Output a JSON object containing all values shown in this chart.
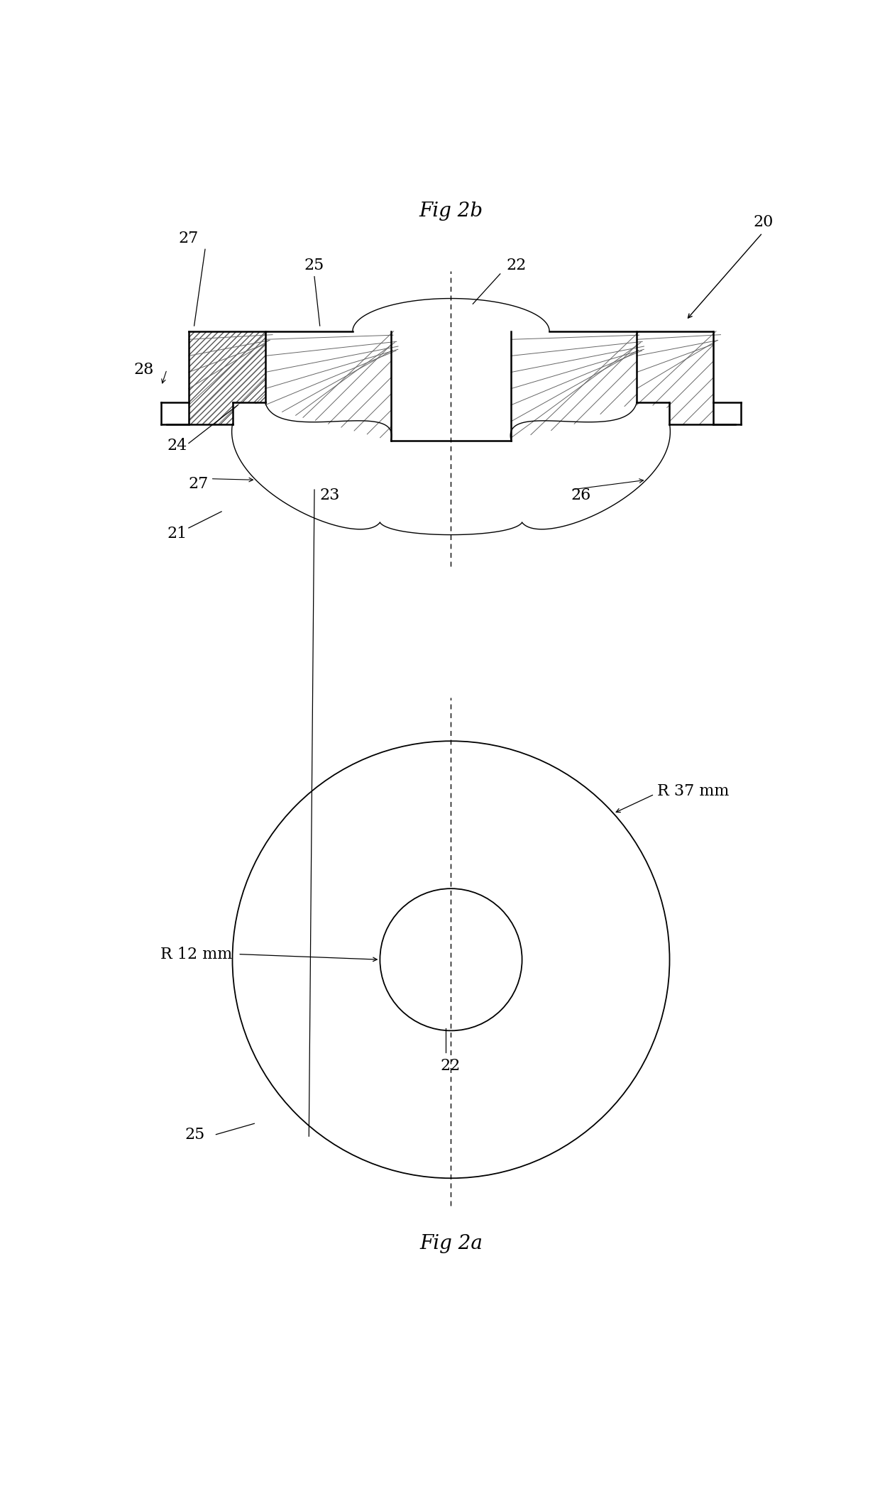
{
  "bg_color": "#ffffff",
  "line_color": "#000000",
  "fig_width": 12.4,
  "fig_height": 21.25,
  "title_2b": "Fig 2b",
  "title_2a": "Fig 2a",
  "label_20": "20",
  "label_21": "21",
  "label_22_top": "22",
  "label_22_bottom": "22",
  "label_23": "23",
  "label_24": "24",
  "label_25_top": "25",
  "label_25_bottom": "25",
  "label_26": "26",
  "label_27_top": "27",
  "label_27_mid": "27",
  "label_28": "28",
  "label_R37": "R 37 mm",
  "label_R12": "R 12 mm",
  "font_size_title": 20,
  "font_size_label": 16
}
